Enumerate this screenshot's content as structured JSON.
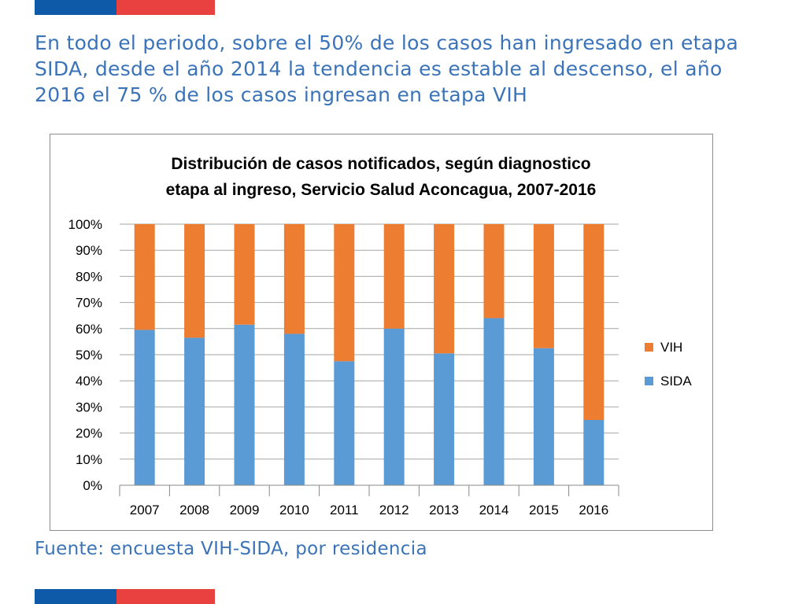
{
  "colors": {
    "brand_blue": "#0f5aa8",
    "brand_red": "#e8413f",
    "headline_text": "#3b73b8",
    "sida": "#5b9bd5",
    "vih": "#ed7d31",
    "grid": "#a6a6a6"
  },
  "slide": {
    "headline": "En todo el periodo, sobre el 50% de los casos han ingresado en etapa SIDA, desde el año 2014 la tendencia es estable al descenso, el año 2016 el 75 % de los casos ingresan en etapa VIH",
    "source": "Fuente: encuesta VIH-SIDA, por residencia"
  },
  "chart_data": {
    "type": "bar",
    "stacked": true,
    "percent": true,
    "title_lines": [
      "Distribución de casos notificados, según diagnostico",
      "etapa al ingreso, Servicio Salud Aconcagua, 2007-2016"
    ],
    "categories": [
      "2007",
      "2008",
      "2009",
      "2010",
      "2011",
      "2012",
      "2013",
      "2014",
      "2015",
      "2016"
    ],
    "series": [
      {
        "name": "SIDA",
        "values": [
          59.5,
          56.5,
          61.5,
          58,
          47.5,
          60,
          50.5,
          64,
          52.5,
          25
        ]
      },
      {
        "name": "VIH",
        "values": [
          40.5,
          43.5,
          38.5,
          42,
          52.5,
          40,
          49.5,
          36,
          47.5,
          75
        ]
      }
    ],
    "legend": [
      "VIH",
      "SIDA"
    ],
    "legend_position": "right",
    "y_ticks": [
      "0%",
      "10%",
      "20%",
      "30%",
      "40%",
      "50%",
      "60%",
      "70%",
      "80%",
      "90%",
      "100%"
    ],
    "ylim": [
      0,
      100
    ],
    "grid": true,
    "xlabel": "",
    "ylabel": ""
  }
}
